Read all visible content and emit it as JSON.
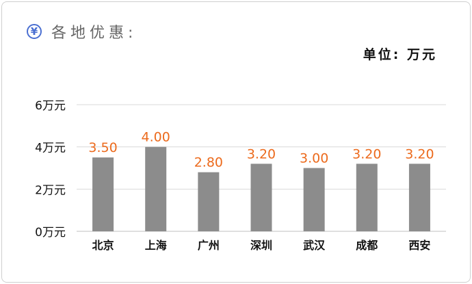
{
  "header": {
    "icon": "yen-icon",
    "icon_glyph": "¥",
    "title": "各地优惠:"
  },
  "unit_label": "单位: 万元",
  "colors": {
    "bar": "#8c8c8c",
    "value_label": "#ec6a1c",
    "grid": "#d9d9d9",
    "accent": "#4a6fd1"
  },
  "chart_data": {
    "type": "bar",
    "title": "各地优惠:",
    "unit": "单位: 万元",
    "categories": [
      "北京",
      "上海",
      "广州",
      "深圳",
      "武汉",
      "成都",
      "西安"
    ],
    "values": [
      3.5,
      4.0,
      2.8,
      3.2,
      3.0,
      3.2,
      3.2
    ],
    "value_labels": [
      "3.50",
      "4.00",
      "2.80",
      "3.20",
      "3.00",
      "3.20",
      "3.20"
    ],
    "y_ticks": [
      0,
      2,
      4,
      6
    ],
    "y_tick_labels": [
      "0万元",
      "2万元",
      "4万元",
      "6万元"
    ],
    "ylim": [
      0,
      6
    ],
    "grid": true
  }
}
